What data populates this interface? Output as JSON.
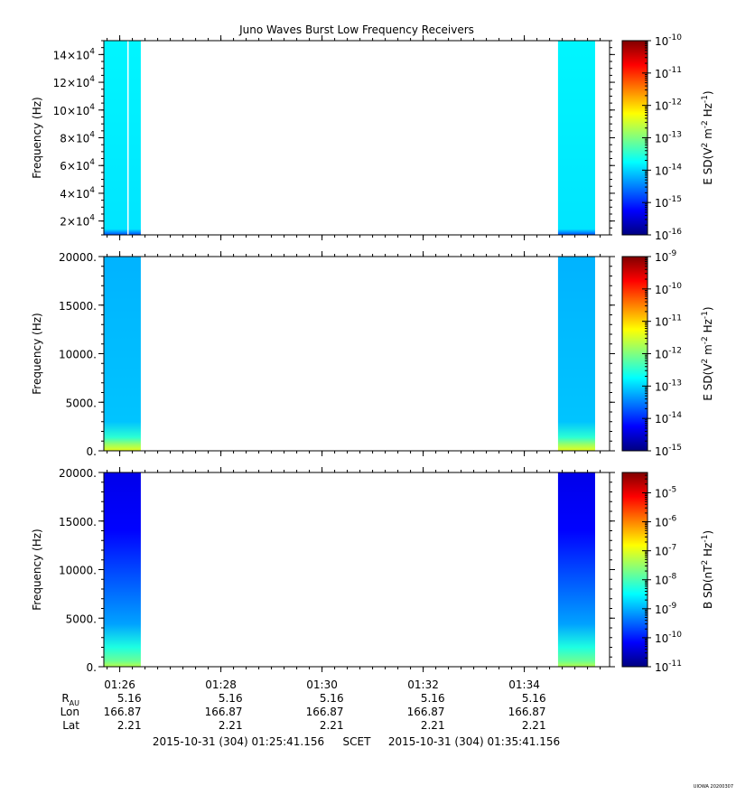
{
  "title": "Juno Waves Burst Low Frequency Receivers",
  "footer_left": "2015-10-31 (304) 01:25:41.156",
  "footer_mid": "SCET",
  "footer_right": "2015-10-31 (304) 01:35:41.156",
  "credit": "UIOWA 20200307",
  "x_tick_labels": [
    "01:26",
    "01:28",
    "01:30",
    "01:32",
    "01:34"
  ],
  "ephemeris": [
    {
      "label": "R",
      "sub": "AU",
      "values": [
        "5.16",
        "5.16",
        "5.16",
        "5.16",
        "5.16"
      ]
    },
    {
      "label": "Lon",
      "values": [
        "166.87",
        "166.87",
        "166.87",
        "166.87",
        "166.87"
      ]
    },
    {
      "label": "Lat",
      "values": [
        "2.21",
        "2.21",
        "2.21",
        "2.21",
        "2.21"
      ]
    }
  ],
  "chart_data": [
    {
      "type": "heatmap",
      "ylabel": "Frequency (Hz)",
      "yticks": [
        20000,
        40000,
        60000,
        80000,
        100000,
        120000,
        140000
      ],
      "ytick_labels": [
        [
          "2",
          "4"
        ],
        [
          "4",
          "4"
        ],
        [
          "6",
          "4"
        ],
        [
          "8",
          "4"
        ],
        [
          "10",
          "4"
        ],
        [
          "12",
          "4"
        ],
        [
          "14",
          "4"
        ]
      ],
      "ylim": [
        10000,
        150000
      ],
      "colorbar": {
        "label": "E SD",
        "exp_min": -16,
        "exp_max": -10,
        "tick_exps": [
          -16,
          -15,
          -14,
          -13,
          -12,
          -11,
          -10
        ]
      },
      "data_blocks": [
        {
          "start": "01:25:41",
          "end": "01:26:25",
          "level": -13.8,
          "gap_at": "01:26:09"
        },
        {
          "start": "01:34:40",
          "end": "01:35:24",
          "level": -13.8
        }
      ]
    },
    {
      "type": "heatmap",
      "ylabel": "Frequency (Hz)",
      "yticks": [
        0,
        5000,
        10000,
        15000,
        20000
      ],
      "ytick_labels": [
        "0.",
        "5000.",
        "10000.",
        "15000.",
        "20000."
      ],
      "ylim": [
        0,
        20000
      ],
      "colorbar": {
        "label": "E SD",
        "exp_min": -15,
        "exp_max": -9,
        "tick_exps": [
          -15,
          -14,
          -13,
          -12,
          -11,
          -10,
          -9
        ]
      },
      "data_blocks": [
        {
          "start": "01:25:41",
          "end": "01:26:25",
          "level": -13.2,
          "low_level": -11.8
        },
        {
          "start": "01:34:40",
          "end": "01:35:24",
          "level": -13.2,
          "low_level": -11.8
        }
      ]
    },
    {
      "type": "heatmap",
      "ylabel": "Frequency (Hz)",
      "yticks": [
        0,
        5000,
        10000,
        15000,
        20000
      ],
      "ytick_labels": [
        "0.",
        "5000.",
        "10000.",
        "15000.",
        "20000."
      ],
      "ylim": [
        0,
        20000
      ],
      "colorbar": {
        "label": "B SD",
        "exp_min": -11,
        "exp_max": -4.3,
        "tick_exps": [
          -11,
          -10,
          -9,
          -8,
          -7,
          -6,
          -5
        ]
      },
      "data_blocks": [
        {
          "start": "01:25:41",
          "end": "01:26:25",
          "level": -10.3,
          "low_level": -7.8
        },
        {
          "start": "01:34:40",
          "end": "01:35:24",
          "level": -10.3,
          "low_level": -7.8
        }
      ]
    }
  ]
}
